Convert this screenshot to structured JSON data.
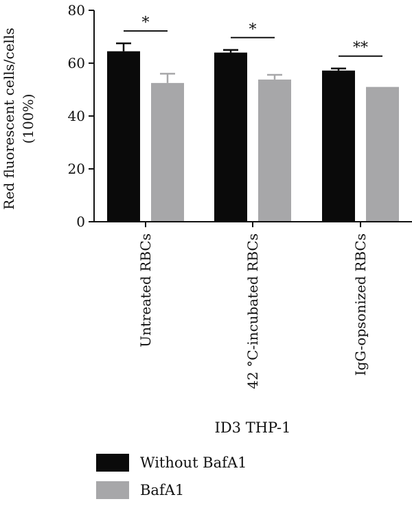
{
  "chart_data": {
    "type": "bar",
    "ylabel_line1": "Red fluorescent cells/cells",
    "ylabel_line2": "(100%)",
    "xlabel": "ID3 THP-1",
    "ylim": [
      0,
      80
    ],
    "yticks": [
      "0",
      "20",
      "40",
      "60",
      "80"
    ],
    "categories": [
      "Untreated RBCs",
      "42 °C-incubated RBCs",
      "IgG-opsonized RBCs"
    ],
    "series": [
      {
        "name": "Without BafA1",
        "color": "#0a0a0a",
        "values": [
          64.5,
          64.0,
          57.2
        ],
        "errors": [
          3.0,
          1.0,
          0.8
        ]
      },
      {
        "name": "BafA1",
        "color": "#a7a7a9",
        "values": [
          52.5,
          53.8,
          51.0
        ],
        "errors": [
          3.5,
          1.8,
          0.0
        ]
      }
    ],
    "significance": [
      "*",
      "*",
      "**"
    ],
    "grid": false,
    "legend_position": "bottom-left"
  }
}
